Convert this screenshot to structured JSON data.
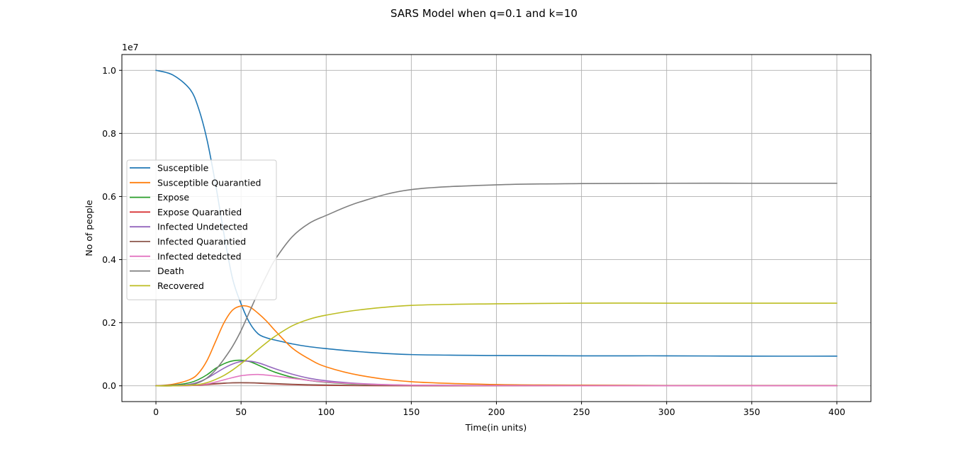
{
  "chart_data": {
    "type": "line",
    "title": "SARS Model when q=0.1 and k=10",
    "xlabel": "Time(in units)",
    "ylabel": "No of people",
    "y_offset_label": "1e7",
    "xlim": [
      -20,
      420
    ],
    "ylim": [
      -0.05,
      1.05
    ],
    "xticks": [
      0,
      50,
      100,
      150,
      200,
      250,
      300,
      350,
      400
    ],
    "xtick_labels": [
      "0",
      "50",
      "100",
      "150",
      "200",
      "250",
      "300",
      "350",
      "400"
    ],
    "yticks": [
      0.0,
      0.2,
      0.4,
      0.6,
      0.8,
      1.0
    ],
    "ytick_labels": [
      "0.0",
      "0.2",
      "0.4",
      "0.6",
      "0.8",
      "1.0"
    ],
    "grid": true,
    "legend_position": "center-left",
    "x": [
      0,
      10,
      20,
      25,
      30,
      35,
      40,
      45,
      50,
      55,
      60,
      65,
      70,
      80,
      90,
      100,
      120,
      150,
      200,
      250,
      300,
      350,
      400
    ],
    "series": [
      {
        "name": "Susceptible",
        "color": "#1f77b4",
        "values": [
          1.0,
          0.985,
          0.94,
          0.88,
          0.78,
          0.64,
          0.48,
          0.34,
          0.26,
          0.2,
          0.165,
          0.152,
          0.145,
          0.133,
          0.124,
          0.118,
          0.108,
          0.099,
          0.096,
          0.095,
          0.095,
          0.094,
          0.094
        ]
      },
      {
        "name": "Susceptible Quarantied",
        "color": "#ff7f0e",
        "values": [
          0.0,
          0.005,
          0.02,
          0.04,
          0.08,
          0.14,
          0.2,
          0.24,
          0.253,
          0.25,
          0.23,
          0.205,
          0.175,
          0.12,
          0.085,
          0.06,
          0.033,
          0.013,
          0.004,
          0.002,
          0.001,
          0.001,
          0.001
        ]
      },
      {
        "name": "Expose",
        "color": "#2ca02c",
        "values": [
          0.0,
          0.002,
          0.01,
          0.02,
          0.035,
          0.055,
          0.07,
          0.079,
          0.081,
          0.077,
          0.066,
          0.054,
          0.043,
          0.027,
          0.017,
          0.011,
          0.005,
          0.002,
          0.001,
          0.0,
          0.0,
          0.0,
          0.0
        ]
      },
      {
        "name": "Expose Quarantied",
        "color": "#d62728",
        "values": [
          0.0,
          0.0,
          0.001,
          0.002,
          0.004,
          0.006,
          0.008,
          0.0095,
          0.01,
          0.0095,
          0.0085,
          0.007,
          0.006,
          0.004,
          0.0025,
          0.0015,
          0.0007,
          0.0003,
          0.0001,
          0.0,
          0.0,
          0.0,
          0.0
        ]
      },
      {
        "name": "Infected Undetected",
        "color": "#9467bd",
        "values": [
          0.0,
          0.001,
          0.005,
          0.012,
          0.024,
          0.04,
          0.056,
          0.069,
          0.077,
          0.078,
          0.073,
          0.064,
          0.054,
          0.037,
          0.024,
          0.016,
          0.007,
          0.002,
          0.001,
          0.0,
          0.0,
          0.0,
          0.0
        ]
      },
      {
        "name": "Infected Quarantied",
        "color": "#8c564b",
        "values": [
          0.0,
          0.0,
          0.002,
          0.003,
          0.005,
          0.007,
          0.0085,
          0.0095,
          0.01,
          0.0095,
          0.009,
          0.008,
          0.007,
          0.005,
          0.0035,
          0.0025,
          0.0012,
          0.0005,
          0.0002,
          0.0001,
          0.0,
          0.0,
          0.0
        ]
      },
      {
        "name": "Infected detedcted",
        "color": "#e377c2",
        "values": [
          0.0,
          0.0,
          0.001,
          0.003,
          0.006,
          0.012,
          0.019,
          0.026,
          0.032,
          0.035,
          0.036,
          0.034,
          0.031,
          0.024,
          0.017,
          0.012,
          0.006,
          0.002,
          0.0005,
          0.0002,
          0.0001,
          0.0,
          0.0
        ]
      },
      {
        "name": "Death",
        "color": "#7f7f7f",
        "values": [
          0.0,
          0.0,
          0.003,
          0.01,
          0.025,
          0.05,
          0.085,
          0.125,
          0.175,
          0.235,
          0.295,
          0.35,
          0.4,
          0.472,
          0.515,
          0.54,
          0.583,
          0.622,
          0.637,
          0.641,
          0.642,
          0.642,
          0.642
        ]
      },
      {
        "name": "Recovered",
        "color": "#bcbd22",
        "values": [
          0.0,
          0.0,
          0.002,
          0.004,
          0.01,
          0.02,
          0.033,
          0.05,
          0.07,
          0.092,
          0.115,
          0.137,
          0.157,
          0.19,
          0.211,
          0.224,
          0.241,
          0.255,
          0.26,
          0.262,
          0.262,
          0.262,
          0.262
        ]
      }
    ]
  }
}
